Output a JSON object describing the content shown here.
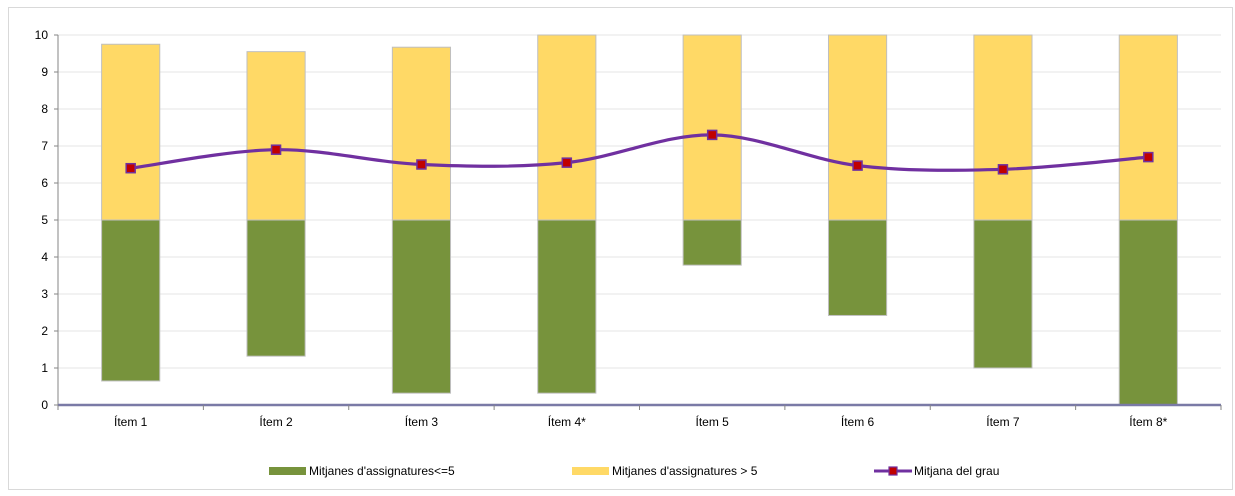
{
  "chart_data": {
    "type": "bar",
    "categories": [
      "Ítem 1",
      "Ítem 2",
      "Ítem 3",
      "Ítem 4*",
      "Ítem 5",
      "Ítem 6",
      "Ítem 7",
      "Ítem 8*"
    ],
    "ylim": [
      0,
      10
    ],
    "yticks": [
      "0",
      "1",
      "2",
      "3",
      "4",
      "5",
      "6",
      "7",
      "8",
      "9",
      "10"
    ],
    "grid": true,
    "legend_position": "bottom",
    "series": [
      {
        "name": "Mitjanes d'assignatures<=5",
        "kind": "floating-bar",
        "color": "#77933c",
        "low": [
          0.65,
          1.32,
          0.32,
          0.32,
          3.78,
          2.42,
          1.0,
          0.0
        ],
        "high": [
          5,
          5,
          5,
          5,
          5,
          5,
          5,
          5
        ]
      },
      {
        "name": "Mitjanes d'assignatures > 5",
        "kind": "floating-bar",
        "color": "#ffd966",
        "low": [
          5,
          5,
          5,
          5,
          5,
          5,
          5,
          5
        ],
        "high": [
          9.75,
          9.55,
          9.67,
          10,
          10,
          10,
          10,
          10
        ]
      },
      {
        "name": "Mitjana del grau",
        "kind": "line",
        "color": "#7030a0",
        "marker_color": "#c00000",
        "values": [
          6.4,
          6.9,
          6.5,
          6.55,
          7.3,
          6.47,
          6.37,
          6.7
        ]
      }
    ]
  }
}
